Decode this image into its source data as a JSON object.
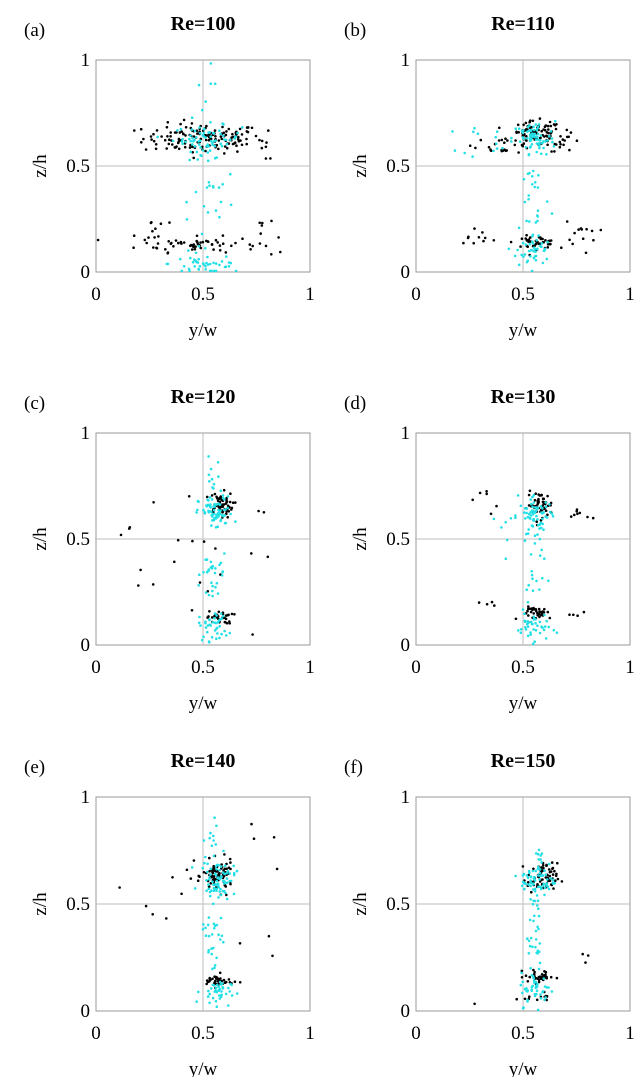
{
  "figure": {
    "type": "scatter",
    "colors": {
      "black_series": "#000000",
      "cyan_series": "#22e0e6",
      "grid": "#bdbdbd",
      "frame": "#999999"
    }
  },
  "chart_data": [
    {
      "type": "scatter",
      "panel": "(a)",
      "title": "Re=100",
      "xlabel": "y/w",
      "ylabel": "z/h",
      "xlim": [
        0,
        1
      ],
      "ylim": [
        0,
        1
      ],
      "xticks": [
        "0",
        "0.5",
        "1"
      ],
      "yticks": [
        "0",
        "0.5",
        "1"
      ],
      "grid": "center lines at 0.5",
      "series": [
        {
          "color": "#000000",
          "clusters": [
            {
              "cx": 0.5,
              "cy": 0.63,
              "sx": 0.14,
              "sy": 0.035,
              "n": 150
            },
            {
              "cx": 0.48,
              "cy": 0.13,
              "sx": 0.14,
              "sy": 0.018,
              "n": 60
            },
            {
              "cx": 0.26,
              "cy": 0.2,
              "sx": 0.04,
              "sy": 0.04,
              "n": 10
            },
            {
              "cx": 0.77,
              "cy": 0.18,
              "sx": 0.03,
              "sy": 0.06,
              "n": 8
            },
            {
              "cx": 0.8,
              "cy": 0.58,
              "sx": 0.03,
              "sy": 0.05,
              "n": 6
            }
          ]
        },
        {
          "color": "#22e0e6",
          "clusters": [
            {
              "cx": 0.52,
              "cy": 0.63,
              "sx": 0.08,
              "sy": 0.03,
              "n": 60
            },
            {
              "cx": 0.52,
              "cy": 0.4,
              "sx": 0.06,
              "sy": 0.25,
              "n": 50
            },
            {
              "cx": 0.52,
              "cy": 0.04,
              "sx": 0.09,
              "sy": 0.025,
              "n": 35
            }
          ]
        }
      ]
    },
    {
      "type": "scatter",
      "panel": "(b)",
      "title": "Re=110",
      "xlabel": "y/w",
      "ylabel": "z/h",
      "xlim": [
        0,
        1
      ],
      "ylim": [
        0,
        1
      ],
      "xticks": [
        "0",
        "0.5",
        "1"
      ],
      "yticks": [
        "0",
        "0.5",
        "1"
      ],
      "grid": "center lines at 0.5",
      "series": [
        {
          "color": "#000000",
          "clusters": [
            {
              "cx": 0.56,
              "cy": 0.65,
              "sx": 0.06,
              "sy": 0.03,
              "n": 90
            },
            {
              "cx": 0.41,
              "cy": 0.6,
              "sx": 0.07,
              "sy": 0.02,
              "n": 20
            },
            {
              "cx": 0.7,
              "cy": 0.61,
              "sx": 0.04,
              "sy": 0.02,
              "n": 15
            },
            {
              "cx": 0.56,
              "cy": 0.14,
              "sx": 0.05,
              "sy": 0.015,
              "n": 45
            },
            {
              "cx": 0.28,
              "cy": 0.17,
              "sx": 0.05,
              "sy": 0.02,
              "n": 10
            },
            {
              "cx": 0.77,
              "cy": 0.18,
              "sx": 0.04,
              "sy": 0.04,
              "n": 12
            }
          ]
        },
        {
          "color": "#22e0e6",
          "clusters": [
            {
              "cx": 0.55,
              "cy": 0.63,
              "sx": 0.05,
              "sy": 0.04,
              "n": 60
            },
            {
              "cx": 0.55,
              "cy": 0.4,
              "sx": 0.04,
              "sy": 0.2,
              "n": 40
            },
            {
              "cx": 0.55,
              "cy": 0.1,
              "sx": 0.04,
              "sy": 0.04,
              "n": 35
            },
            {
              "cx": 0.38,
              "cy": 0.62,
              "sx": 0.08,
              "sy": 0.04,
              "n": 15
            }
          ]
        }
      ]
    },
    {
      "type": "scatter",
      "panel": "(c)",
      "title": "Re=120",
      "xlabel": "y/w",
      "ylabel": "z/h",
      "xlim": [
        0,
        1
      ],
      "ylim": [
        0,
        1
      ],
      "xticks": [
        "0",
        "0.5",
        "1"
      ],
      "yticks": [
        "0",
        "0.5",
        "1"
      ],
      "grid": "center lines at 0.5",
      "series": [
        {
          "color": "#000000",
          "clusters": [
            {
              "cx": 0.58,
              "cy": 0.66,
              "sx": 0.03,
              "sy": 0.03,
              "n": 60
            },
            {
              "cx": 0.58,
              "cy": 0.13,
              "sx": 0.03,
              "sy": 0.015,
              "n": 30
            },
            {
              "cx": 0.35,
              "cy": 0.45,
              "sx": 0.12,
              "sy": 0.18,
              "n": 18
            },
            {
              "cx": 0.75,
              "cy": 0.45,
              "sx": 0.04,
              "sy": 0.18,
              "n": 5
            }
          ]
        },
        {
          "color": "#22e0e6",
          "clusters": [
            {
              "cx": 0.56,
              "cy": 0.62,
              "sx": 0.04,
              "sy": 0.04,
              "n": 70
            },
            {
              "cx": 0.55,
              "cy": 0.37,
              "sx": 0.03,
              "sy": 0.03,
              "n": 20
            },
            {
              "cx": 0.55,
              "cy": 0.09,
              "sx": 0.035,
              "sy": 0.035,
              "n": 40
            },
            {
              "cx": 0.54,
              "cy": 0.78,
              "sx": 0.02,
              "sy": 0.05,
              "n": 12
            },
            {
              "cx": 0.54,
              "cy": 0.25,
              "sx": 0.02,
              "sy": 0.08,
              "n": 10
            }
          ]
        }
      ]
    },
    {
      "type": "scatter",
      "panel": "(d)",
      "title": "Re=130",
      "xlabel": "y/w",
      "ylabel": "z/h",
      "xlim": [
        0,
        1
      ],
      "ylim": [
        0,
        1
      ],
      "xticks": [
        "0",
        "0.5",
        "1"
      ],
      "yticks": [
        "0",
        "0.5",
        "1"
      ],
      "grid": "center lines at 0.5",
      "series": [
        {
          "color": "#000000",
          "clusters": [
            {
              "cx": 0.58,
              "cy": 0.66,
              "sx": 0.03,
              "sy": 0.03,
              "n": 55
            },
            {
              "cx": 0.58,
              "cy": 0.15,
              "sx": 0.04,
              "sy": 0.015,
              "n": 35
            },
            {
              "cx": 0.34,
              "cy": 0.68,
              "sx": 0.02,
              "sy": 0.03,
              "n": 6
            },
            {
              "cx": 0.75,
              "cy": 0.62,
              "sx": 0.03,
              "sy": 0.02,
              "n": 8
            },
            {
              "cx": 0.33,
              "cy": 0.19,
              "sx": 0.02,
              "sy": 0.01,
              "n": 4
            },
            {
              "cx": 0.76,
              "cy": 0.16,
              "sx": 0.02,
              "sy": 0.01,
              "n": 4
            }
          ]
        },
        {
          "color": "#22e0e6",
          "clusters": [
            {
              "cx": 0.56,
              "cy": 0.61,
              "sx": 0.04,
              "sy": 0.04,
              "n": 65
            },
            {
              "cx": 0.55,
              "cy": 0.35,
              "sx": 0.025,
              "sy": 0.15,
              "n": 25
            },
            {
              "cx": 0.55,
              "cy": 0.08,
              "sx": 0.04,
              "sy": 0.03,
              "n": 35
            },
            {
              "cx": 0.42,
              "cy": 0.55,
              "sx": 0.05,
              "sy": 0.06,
              "n": 8
            }
          ]
        }
      ]
    },
    {
      "type": "scatter",
      "panel": "(e)",
      "title": "Re=140",
      "xlabel": "y/w",
      "ylabel": "z/h",
      "xlim": [
        0,
        1
      ],
      "ylim": [
        0,
        1
      ],
      "xticks": [
        "0",
        "0.5",
        "1"
      ],
      "yticks": [
        "0",
        "0.5",
        "1"
      ],
      "grid": "center lines at 0.5",
      "series": [
        {
          "color": "#000000",
          "clusters": [
            {
              "cx": 0.57,
              "cy": 0.63,
              "sx": 0.035,
              "sy": 0.035,
              "n": 85
            },
            {
              "cx": 0.57,
              "cy": 0.14,
              "sx": 0.035,
              "sy": 0.015,
              "n": 40
            },
            {
              "cx": 0.38,
              "cy": 0.6,
              "sx": 0.12,
              "sy": 0.12,
              "n": 10
            },
            {
              "cx": 0.77,
              "cy": 0.5,
              "sx": 0.04,
              "sy": 0.2,
              "n": 7
            }
          ]
        },
        {
          "color": "#22e0e6",
          "clusters": [
            {
              "cx": 0.57,
              "cy": 0.62,
              "sx": 0.04,
              "sy": 0.04,
              "n": 70
            },
            {
              "cx": 0.55,
              "cy": 0.38,
              "sx": 0.03,
              "sy": 0.12,
              "n": 30
            },
            {
              "cx": 0.56,
              "cy": 0.09,
              "sx": 0.035,
              "sy": 0.03,
              "n": 40
            },
            {
              "cx": 0.54,
              "cy": 0.8,
              "sx": 0.02,
              "sy": 0.05,
              "n": 10
            }
          ]
        }
      ]
    },
    {
      "type": "scatter",
      "panel": "(f)",
      "title": "Re=150",
      "xlabel": "y/w",
      "ylabel": "z/h",
      "xlim": [
        0,
        1
      ],
      "ylim": [
        0,
        1
      ],
      "xticks": [
        "0",
        "0.5",
        "1"
      ],
      "yticks": [
        "0",
        "0.5",
        "1"
      ],
      "grid": "center lines at 0.5",
      "series": [
        {
          "color": "#000000",
          "clusters": [
            {
              "cx": 0.59,
              "cy": 0.62,
              "sx": 0.035,
              "sy": 0.035,
              "n": 70
            },
            {
              "cx": 0.58,
              "cy": 0.16,
              "sx": 0.035,
              "sy": 0.015,
              "n": 35
            },
            {
              "cx": 0.57,
              "cy": 0.07,
              "sx": 0.03,
              "sy": 0.01,
              "n": 12
            },
            {
              "cx": 0.78,
              "cy": 0.24,
              "sx": 0.02,
              "sy": 0.02,
              "n": 3
            },
            {
              "cx": 0.28,
              "cy": 0.03,
              "sx": 0.005,
              "sy": 0.005,
              "n": 1
            }
          ]
        },
        {
          "color": "#22e0e6",
          "clusters": [
            {
              "cx": 0.57,
              "cy": 0.61,
              "sx": 0.04,
              "sy": 0.04,
              "n": 60
            },
            {
              "cx": 0.55,
              "cy": 0.4,
              "sx": 0.03,
              "sy": 0.18,
              "n": 35
            },
            {
              "cx": 0.56,
              "cy": 0.1,
              "sx": 0.035,
              "sy": 0.04,
              "n": 40
            },
            {
              "cx": 0.58,
              "cy": 0.73,
              "sx": 0.015,
              "sy": 0.02,
              "n": 8
            }
          ]
        }
      ]
    }
  ]
}
